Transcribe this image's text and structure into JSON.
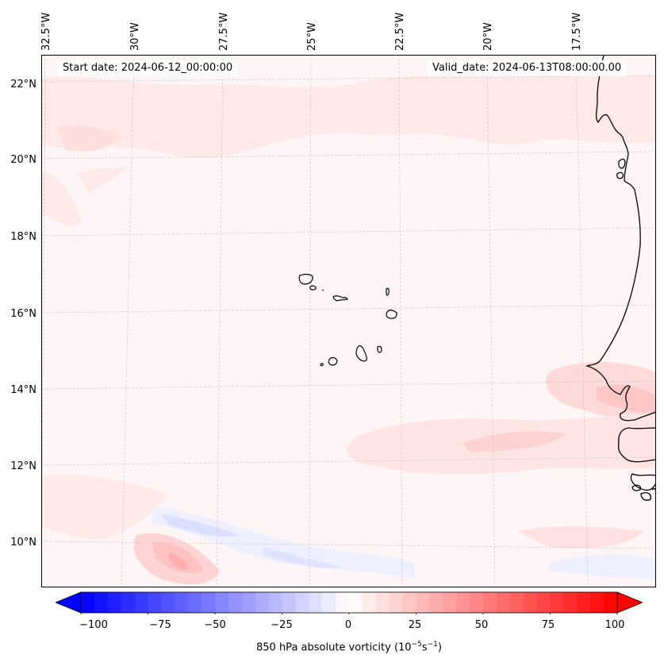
{
  "map": {
    "title_left": "Start date: 2024-06-12_00:00:00",
    "title_right": "Valid_date: 2024-06-13T08:00:00.00",
    "variable": "850 hPa absolute vorticity",
    "units_base": "10",
    "units_exp1": "−5",
    "units_s": "s",
    "units_exp2": "−1",
    "lon_labels": [
      "32.5°W",
      "30°W",
      "27.5°W",
      "25°W",
      "22.5°W",
      "20°W",
      "17.5°W"
    ],
    "lat_labels": [
      "22°N",
      "20°N",
      "18°N",
      "16°N",
      "14°N",
      "12°N",
      "10°N"
    ],
    "extent": {
      "lon_min": -32.7,
      "lon_max": -15.9,
      "lat_min": 8.9,
      "lat_max": 22.8
    },
    "features": [
      "Cape Verde islands",
      "West African coastline (Mauritania, Senegal, Gambia, Guinea-Bissau)"
    ],
    "field_summary": "Mostly weak positive vorticity (0-15); positive maximum ~25-30 near 10N 29W and ~20 off Senegal coast near 14N 17.5W; weak negative band (-5 to -15) along ~10N"
  },
  "colorbar": {
    "ticks": [
      "−100",
      "−75",
      "−50",
      "−25",
      "0",
      "25",
      "50",
      "75",
      "100"
    ],
    "min": -100,
    "max": 100,
    "step": 5,
    "extend": "both",
    "cmap": "bwr",
    "colors": {
      "neg_end": "#0000ff",
      "mid": "#ffffff",
      "pos_end": "#ff0000"
    }
  }
}
